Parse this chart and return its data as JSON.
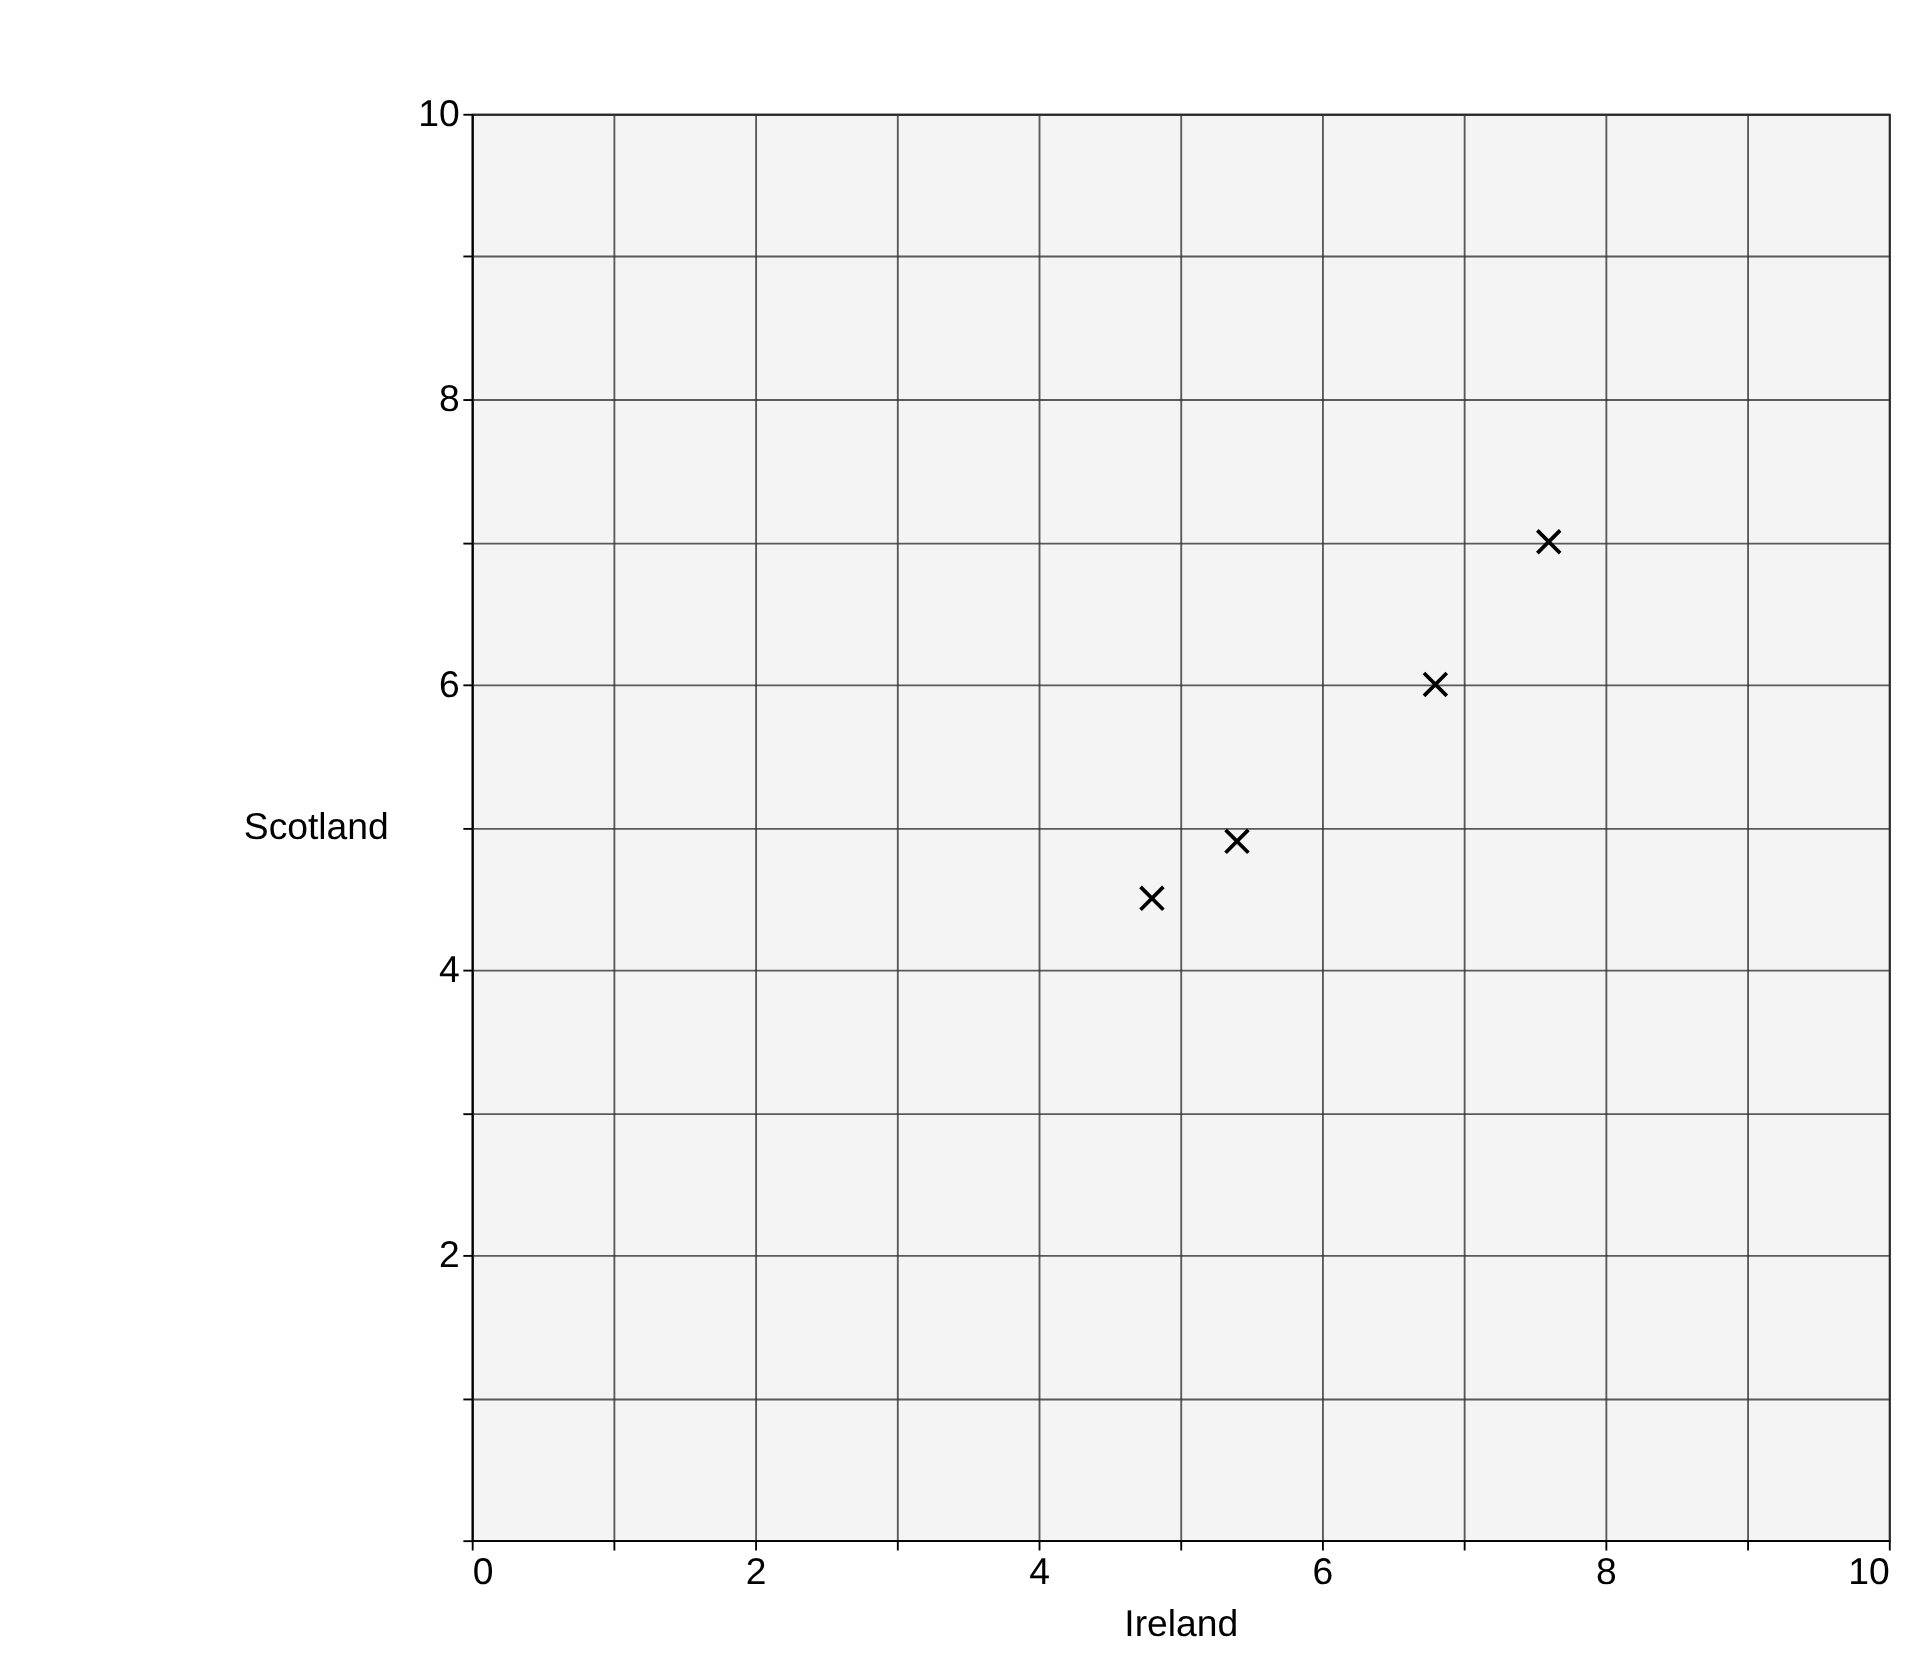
{
  "chart_data": {
    "type": "scatter",
    "xlabel": "Ireland",
    "ylabel": "Scotland",
    "x": [
      4.8,
      5.4,
      6.8,
      7.6
    ],
    "series": [
      {
        "color": "#000000",
        "values": [
          4.5,
          4.9,
          6.0,
          7.0
        ]
      }
    ],
    "xlim": [
      0,
      10
    ],
    "ylim": [
      0,
      10
    ],
    "xticks": [
      0,
      {
        "value": 1,
        "label": null
      },
      2,
      {
        "value": 3,
        "label": null
      },
      4,
      {
        "value": 5,
        "label": null
      },
      6,
      {
        "value": 7,
        "label": null
      },
      8,
      {
        "value": 9,
        "label": null
      },
      10
    ],
    "yticks": [
      {
        "value": 0,
        "label": null
      },
      {
        "value": 1,
        "label": null
      },
      2,
      {
        "value": 3,
        "label": null
      },
      4,
      {
        "value": 5,
        "label": null
      },
      6,
      {
        "value": 7,
        "label": null
      },
      8,
      {
        "value": 9,
        "label": null
      },
      10
    ],
    "grid": true,
    "marker": "cross"
  }
}
